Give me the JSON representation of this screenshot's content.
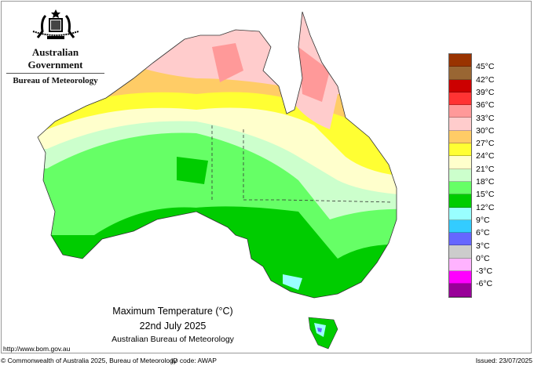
{
  "header": {
    "government": "Australian Government",
    "agency": "Bureau of Meteorology",
    "logo": "coat-of-arms"
  },
  "map": {
    "title": "Maximum Temperature (°C)",
    "date": "22nd July 2025",
    "source": "Australian Bureau of Meteorology"
  },
  "legend": {
    "colors": [
      "#993300",
      "#996633",
      "#cc0000",
      "#ff3333",
      "#ff9999",
      "#ffcccc",
      "#ffcc66",
      "#ffff33",
      "#ffffcc",
      "#ccffcc",
      "#66ff66",
      "#00cc00",
      "#99ffff",
      "#33ccff",
      "#6666ff",
      "#cccccc",
      "#ffb3ff",
      "#ff00ff",
      "#990099"
    ],
    "labels": [
      "45°C",
      "42°C",
      "39°C",
      "36°C",
      "33°C",
      "30°C",
      "27°C",
      "24°C",
      "21°C",
      "18°C",
      "15°C",
      "12°C",
      "9°C",
      "6°C",
      "3°C",
      "0°C",
      "-3°C",
      "-6°C"
    ]
  },
  "url": "http://www.bom.gov.au",
  "footer": {
    "copyright": "© Commonwealth of Australia 2025, Bureau of Meteorology",
    "id_code": "ID code: AWAP",
    "issued": "Issued: 23/07/2025"
  }
}
